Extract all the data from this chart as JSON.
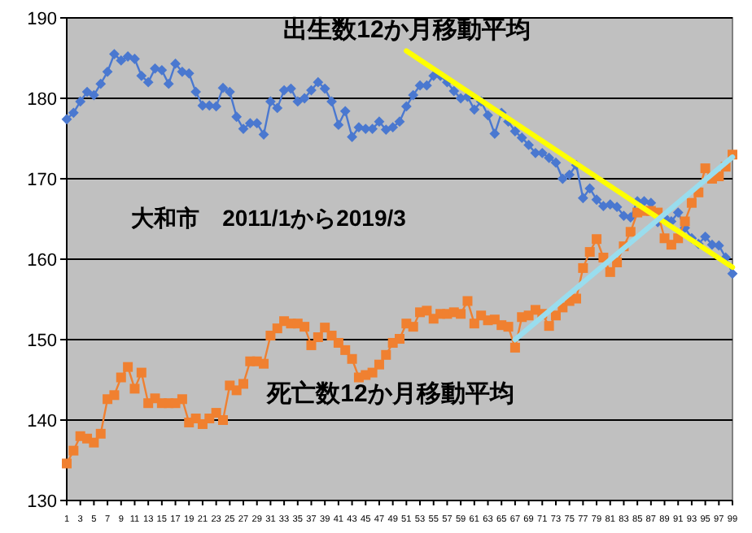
{
  "chart_data": {
    "type": "line",
    "title": "大和市　2011/1から2019/3",
    "x": [
      1,
      2,
      3,
      4,
      5,
      6,
      7,
      8,
      9,
      10,
      11,
      12,
      13,
      14,
      15,
      16,
      17,
      18,
      19,
      20,
      21,
      22,
      23,
      24,
      25,
      26,
      27,
      28,
      29,
      30,
      31,
      32,
      33,
      34,
      35,
      36,
      37,
      38,
      39,
      40,
      41,
      42,
      43,
      44,
      45,
      46,
      47,
      48,
      49,
      50,
      51,
      52,
      53,
      54,
      55,
      56,
      57,
      58,
      59,
      60,
      61,
      62,
      63,
      64,
      65,
      66,
      67,
      68,
      69,
      70,
      71,
      72,
      73,
      74,
      75,
      76,
      77,
      78,
      79,
      80,
      81,
      82,
      83,
      84,
      85,
      86,
      87,
      88,
      89,
      90,
      91,
      92,
      93,
      94,
      95,
      96,
      97,
      98,
      99
    ],
    "xlim": [
      1,
      99
    ],
    "xticks": [
      1,
      3,
      5,
      7,
      9,
      11,
      13,
      15,
      17,
      19,
      21,
      23,
      25,
      27,
      29,
      31,
      33,
      35,
      37,
      39,
      41,
      43,
      45,
      47,
      49,
      51,
      53,
      55,
      57,
      59,
      61,
      63,
      65,
      67,
      69,
      71,
      73,
      75,
      77,
      79,
      81,
      83,
      85,
      87,
      89,
      91,
      93,
      95,
      97,
      99
    ],
    "ylim": [
      130,
      190
    ],
    "yticks": [
      130,
      140,
      150,
      160,
      170,
      180,
      190
    ],
    "grid": "y",
    "series": [
      {
        "name": "出生数12か月移動平均",
        "color": "#4a78d0",
        "marker": "diamond",
        "values": [
          177.4,
          178.2,
          179.6,
          180.8,
          180.4,
          181.8,
          183.3,
          185.5,
          184.7,
          185.2,
          184.9,
          182.8,
          182.0,
          183.7,
          183.5,
          181.8,
          184.3,
          183.3,
          183.1,
          180.8,
          179.1,
          179.1,
          179.0,
          181.3,
          180.8,
          177.7,
          176.2,
          176.9,
          176.9,
          175.5,
          179.6,
          178.8,
          181.0,
          181.2,
          179.6,
          180.0,
          181.0,
          182.0,
          181.2,
          179.6,
          176.7,
          178.4,
          175.2,
          176.4,
          176.2,
          176.2,
          177.1,
          176.1,
          176.4,
          177.1,
          179.0,
          180.4,
          181.6,
          181.6,
          182.8,
          182.8,
          182.0,
          180.9,
          180.0,
          180.2,
          178.6,
          179.6,
          177.9,
          175.6,
          178.2,
          177.1,
          175.9,
          175.1,
          174.2,
          173.2,
          173.2,
          172.6,
          172.0,
          170.0,
          170.5,
          171.7,
          167.6,
          168.8,
          167.4,
          166.6,
          166.8,
          166.5,
          165.4,
          165.2,
          167.2,
          167.2,
          167.0,
          164.6,
          165.2,
          164.7,
          165.8,
          163.9,
          162.6,
          161.9,
          162.8,
          161.8,
          161.7,
          160.2,
          158.2
        ]
      },
      {
        "name": "死亡数12か月移動平均",
        "color": "#f08030",
        "marker": "square",
        "values": [
          134.6,
          136.2,
          138.0,
          137.7,
          137.2,
          138.3,
          142.6,
          143.1,
          145.3,
          146.6,
          143.9,
          145.9,
          142.1,
          142.7,
          142.1,
          142.1,
          142.1,
          142.6,
          139.7,
          140.2,
          139.5,
          140.2,
          140.9,
          140.0,
          144.3,
          143.7,
          144.5,
          147.3,
          147.3,
          147.0,
          150.5,
          151.4,
          152.3,
          152.0,
          152.0,
          151.6,
          149.3,
          150.3,
          151.5,
          150.5,
          149.6,
          148.7,
          147.6,
          145.3,
          145.6,
          145.9,
          146.9,
          148.1,
          149.6,
          150.1,
          152.0,
          151.6,
          153.4,
          153.6,
          152.6,
          153.2,
          153.2,
          153.4,
          153.2,
          154.8,
          152.0,
          153.0,
          152.4,
          152.5,
          151.8,
          151.6,
          149.0,
          152.8,
          153.0,
          153.7,
          153.2,
          151.7,
          153.0,
          154.0,
          154.8,
          155.1,
          158.9,
          160.9,
          162.5,
          160.2,
          158.4,
          159.6,
          161.6,
          163.4,
          165.8,
          166.0,
          166.0,
          165.8,
          162.6,
          161.8,
          162.6,
          164.7,
          167.0,
          168.3,
          171.3,
          170.0,
          170.3,
          171.5,
          173.0
        ]
      },
      {
        "type": "line",
        "color": "#ffff00",
        "marker": "none",
        "x": [
          51,
          99
        ],
        "values": [
          185.9,
          159.0
        ]
      },
      {
        "type": "line",
        "color": "#99ddee",
        "marker": "none",
        "x": [
          67,
          99
        ],
        "values": [
          150.0,
          172.7
        ]
      }
    ]
  }
}
